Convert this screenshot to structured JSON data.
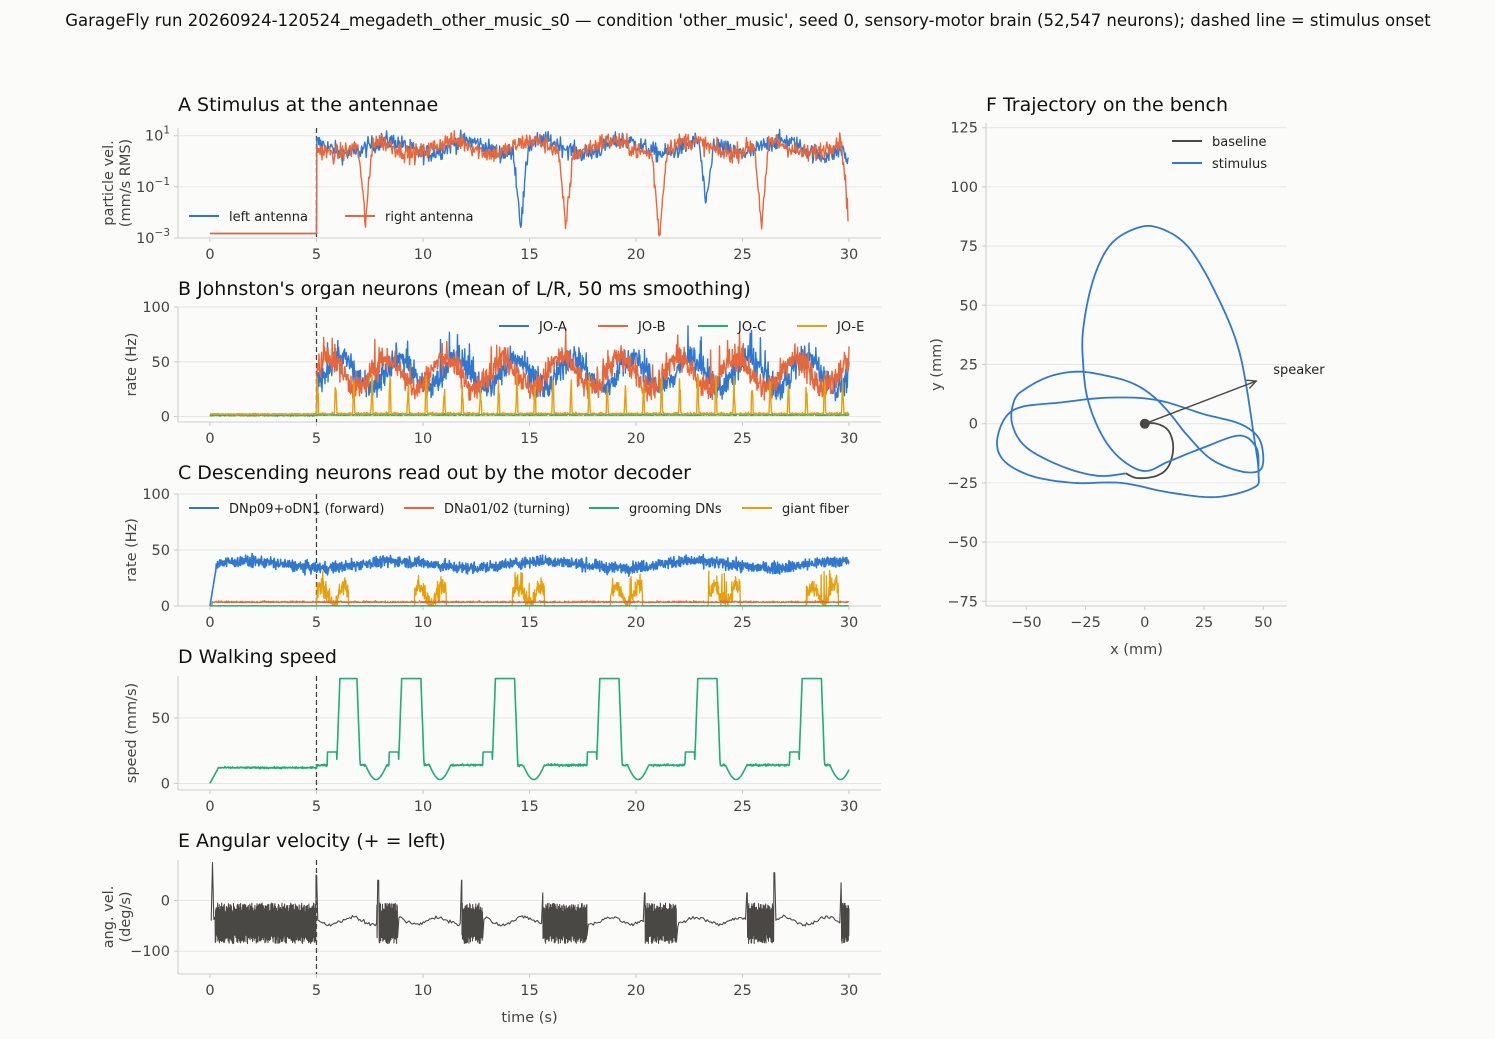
{
  "title": "GarageFly run 20260924-120524_megadeth_other_music_s0 — condition 'other_music', seed 0, sensory-motor brain (52,547 neurons); dashed line = stimulus onset",
  "colors": {
    "blue": "#2e78d2",
    "orange": "#e8673a",
    "green": "#20ac7c",
    "gold": "#e5a00b",
    "dark": "#4a4845",
    "baseline": "#4a4845"
  },
  "chart_data": [
    {
      "id": "A",
      "type": "line",
      "title": "A  Stimulus at the antennae",
      "ylabel": [
        "particle vel.",
        "(mm/s RMS)"
      ],
      "yscale": "log",
      "ylim": [
        0.001,
        20
      ],
      "yticks": [
        0.001,
        0.1,
        10
      ],
      "ytick_labels": [
        [
          "10",
          "−3"
        ],
        [
          "10",
          "−1"
        ],
        [
          "10",
          "1"
        ]
      ],
      "xlim": [
        -1.5,
        31.5
      ],
      "xticks": [
        0,
        5,
        10,
        15,
        20,
        25,
        30
      ],
      "xtick_labels": [
        "0",
        "5",
        "10",
        "15",
        "20",
        "25",
        "30"
      ],
      "stimulus_onset": 5,
      "legend": "bottom-left",
      "series": [
        {
          "name": "left antenna",
          "color": "blue",
          "baseline": 0.0015,
          "key_points": [
            [
              5,
              0.0015
            ],
            [
              5.05,
              6
            ],
            [
              14.6,
              0.004
            ],
            [
              23.3,
              0.01
            ],
            [
              30,
              0.8
            ]
          ]
        },
        {
          "name": "right antenna",
          "color": "orange",
          "baseline": 0.0015,
          "key_points": [
            [
              5,
              0.0015
            ],
            [
              5.05,
              5
            ],
            [
              7.3,
              0.003
            ],
            [
              16.7,
              0.005
            ],
            [
              21.1,
              0.002
            ],
            [
              25.9,
              0.002
            ],
            [
              30,
              0.002
            ]
          ]
        }
      ]
    },
    {
      "id": "B",
      "type": "line",
      "title": "B  Johnston's organ neurons (mean of L/R, 50 ms smoothing)",
      "ylabel": [
        "rate (Hz)"
      ],
      "ylim": [
        -5,
        100
      ],
      "yticks": [
        0,
        50,
        100
      ],
      "ytick_labels": [
        "0",
        "50",
        "100"
      ],
      "xlim": [
        -1.5,
        31.5
      ],
      "xticks": [
        0,
        5,
        10,
        15,
        20,
        25,
        30
      ],
      "xtick_labels": [
        "0",
        "5",
        "10",
        "15",
        "20",
        "25",
        "30"
      ],
      "stimulus_onset": 5,
      "legend": "top-right",
      "series": [
        {
          "name": "JO-A",
          "color": "blue",
          "baseline": 2,
          "stim_mean": 40,
          "stim_max": 86
        },
        {
          "name": "JO-B",
          "color": "orange",
          "baseline": 2,
          "stim_mean": 40,
          "stim_max": 100
        },
        {
          "name": "JO-C",
          "color": "green",
          "baseline": 1,
          "stim_mean": 1,
          "stim_max": 5
        },
        {
          "name": "JO-E",
          "color": "gold",
          "baseline": 2,
          "stim_mean": 5,
          "stim_max": 38
        }
      ]
    },
    {
      "id": "C",
      "type": "line",
      "title": "C  Descending neurons read out by the motor decoder",
      "ylabel": [
        "rate (Hz)"
      ],
      "ylim": [
        0,
        100
      ],
      "yticks": [
        0,
        50,
        100
      ],
      "ytick_labels": [
        "0",
        "50",
        "100"
      ],
      "xlim": [
        -1.5,
        31.5
      ],
      "xticks": [
        0,
        5,
        10,
        15,
        20,
        25,
        30
      ],
      "xtick_labels": [
        "0",
        "5",
        "10",
        "15",
        "20",
        "25",
        "30"
      ],
      "stimulus_onset": 5,
      "legend": "top",
      "series": [
        {
          "name": "DNp09+oDN1 (forward)",
          "color": "blue",
          "mean": 37,
          "range": [
            25,
            48
          ]
        },
        {
          "name": "DNa01/02 (turning)",
          "color": "orange",
          "mean": 3,
          "range": [
            0,
            6
          ]
        },
        {
          "name": "grooming DNs",
          "color": "green",
          "mean": 0,
          "range": [
            0,
            1
          ]
        },
        {
          "name": "giant fiber",
          "color": "gold",
          "baseline": 0,
          "stim_max": 32
        }
      ]
    },
    {
      "id": "D",
      "type": "line",
      "title": "D  Walking speed",
      "ylabel": [
        "speed (mm/s)"
      ],
      "ylim": [
        -5,
        82
      ],
      "yticks": [
        0,
        50
      ],
      "ytick_labels": [
        "0",
        "50"
      ],
      "xlim": [
        -1.5,
        31.5
      ],
      "xticks": [
        0,
        5,
        10,
        15,
        20,
        25,
        30
      ],
      "xtick_labels": [
        "0",
        "5",
        "10",
        "15",
        "20",
        "25",
        "30"
      ],
      "stimulus_onset": 5,
      "series": [
        {
          "name": "speed",
          "color": "green",
          "baseline": 12,
          "plateau": 80,
          "plateau_intervals": [
            [
              6.1,
              6.9
            ],
            [
              9.0,
              9.9
            ],
            [
              13.4,
              14.3
            ],
            [
              18.3,
              19.2
            ],
            [
              22.9,
              23.8
            ],
            [
              27.8,
              28.7
            ]
          ]
        }
      ]
    },
    {
      "id": "E",
      "type": "line",
      "title": "E  Angular velocity (+ = left)",
      "ylabel": [
        "ang. vel.",
        "(deg/s)"
      ],
      "ylim": [
        -145,
        80
      ],
      "yticks": [
        0,
        -100
      ],
      "ytick_labels": [
        "0",
        "−100"
      ],
      "xlim": [
        -1.5,
        31.5
      ],
      "xticks": [
        0,
        5,
        10,
        15,
        20,
        25,
        30
      ],
      "xtick_labels": [
        "0",
        "5",
        "10",
        "15",
        "20",
        "25",
        "30"
      ],
      "xlabel": "time (s)",
      "stimulus_onset": 5,
      "series": [
        {
          "name": "angular velocity",
          "color": "dark",
          "quiet_level": -40,
          "oscillation_intervals": [
            [
              0.2,
              5.0
            ],
            [
              7.8,
              8.8
            ],
            [
              11.8,
              12.8
            ],
            [
              15.6,
              17.7
            ],
            [
              20.4,
              21.9
            ],
            [
              25.2,
              26.5
            ],
            [
              29.6,
              30
            ]
          ],
          "spikes": [
            [
              0.1,
              75
            ],
            [
              5.0,
              50
            ],
            [
              7.9,
              40
            ],
            [
              11.8,
              40
            ],
            [
              15.6,
              15
            ],
            [
              20.4,
              15
            ],
            [
              25.2,
              15
            ],
            [
              26.5,
              55
            ],
            [
              29.6,
              35
            ]
          ]
        }
      ]
    },
    {
      "id": "F",
      "type": "line",
      "title": "F  Trajectory on the bench",
      "xlabel": "x (mm)",
      "ylabel": [
        "y (mm)"
      ],
      "xlim": [
        -67,
        60
      ],
      "ylim": [
        -77,
        127
      ],
      "xticks": [
        -50,
        -25,
        0,
        25,
        50
      ],
      "xtick_labels": [
        "−50",
        "−25",
        "0",
        "25",
        "50"
      ],
      "yticks": [
        -75,
        -50,
        -25,
        0,
        25,
        50,
        75,
        100,
        125
      ],
      "ytick_labels": [
        "−75",
        "−50",
        "−25",
        "0",
        "25",
        "50",
        "75",
        "100",
        "125"
      ],
      "legend": "top-right",
      "annotation": {
        "text": "speaker",
        "arrow_from": [
          0,
          0
        ],
        "arrow_to": [
          47,
          18
        ]
      },
      "series": [
        {
          "name": "baseline",
          "color": "baseline",
          "points": [
            [
              0,
              0
            ],
            [
              5,
              0
            ],
            [
              10,
              -3
            ],
            [
              12,
              -10
            ],
            [
              10,
              -18
            ],
            [
              5,
              -22
            ],
            [
              -3,
              -23
            ],
            [
              -8,
              -21
            ]
          ]
        },
        {
          "name": "stimulus",
          "color": "blue",
          "points": [
            [
              -8,
              -21
            ],
            [
              -20,
              -22
            ],
            [
              -35,
              -18
            ],
            [
              -50,
              -10
            ],
            [
              -56,
              0
            ],
            [
              -55,
              10
            ],
            [
              -50,
              15
            ],
            [
              -40,
              20
            ],
            [
              -28,
              22
            ],
            [
              -15,
              20
            ],
            [
              -5,
              17
            ],
            [
              3,
              12
            ],
            [
              10,
              5
            ],
            [
              18,
              -5
            ],
            [
              28,
              -15
            ],
            [
              40,
              -20
            ],
            [
              48,
              -20
            ],
            [
              50,
              -15
            ],
            [
              48,
              -6
            ],
            [
              40,
              0
            ],
            [
              25,
              4
            ],
            [
              5,
              10
            ],
            [
              -15,
              11
            ],
            [
              -35,
              9
            ],
            [
              -55,
              6
            ],
            [
              -62,
              -5
            ],
            [
              -60,
              -15
            ],
            [
              -48,
              -22
            ],
            [
              -30,
              -25
            ],
            [
              -10,
              -25
            ],
            [
              10,
              -29
            ],
            [
              30,
              -31
            ],
            [
              46,
              -27
            ],
            [
              48,
              -21
            ],
            [
              46,
              -5
            ],
            [
              40,
              30
            ],
            [
              30,
              55
            ],
            [
              18,
              75
            ],
            [
              5,
              83
            ],
            [
              -5,
              82
            ],
            [
              -15,
              75
            ],
            [
              -22,
              60
            ],
            [
              -26,
              40
            ],
            [
              -26,
              25
            ],
            [
              -24,
              10
            ],
            [
              -18,
              -5
            ],
            [
              -10,
              -15
            ],
            [
              0,
              -20
            ],
            [
              10,
              -16
            ],
            [
              25,
              -10
            ],
            [
              40,
              -5
            ],
            [
              47,
              -10
            ],
            [
              48,
              -18
            ]
          ]
        }
      ]
    }
  ]
}
